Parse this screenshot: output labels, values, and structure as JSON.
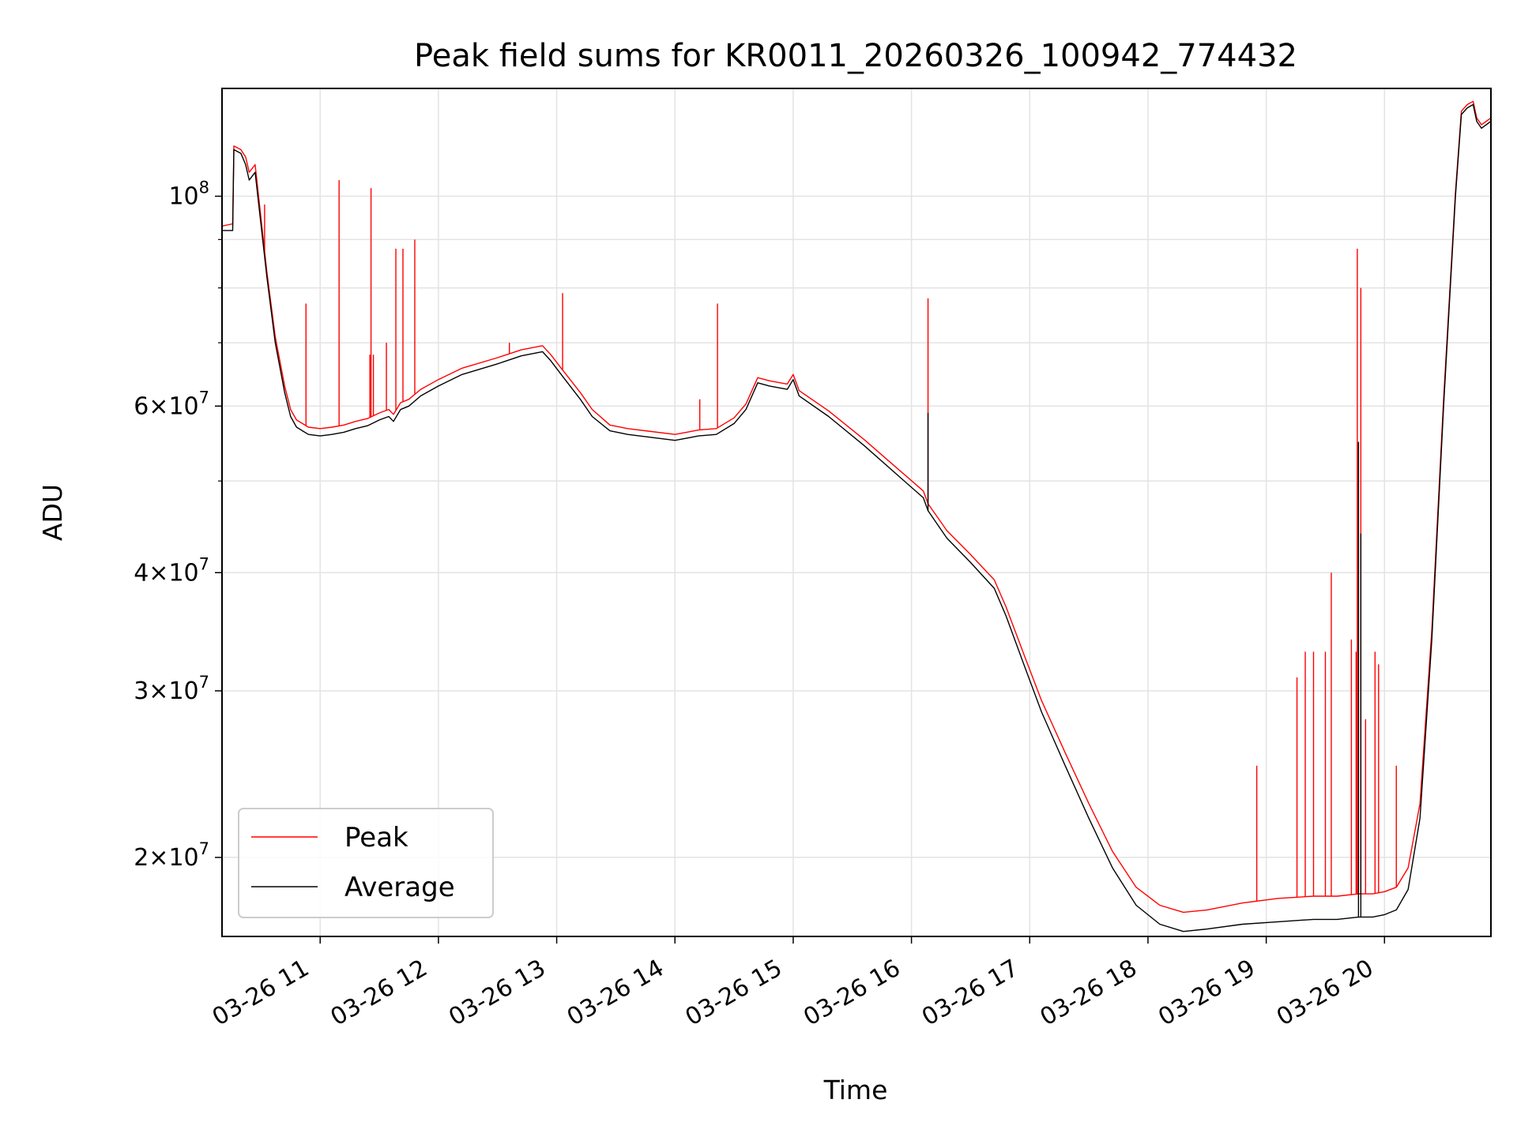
{
  "chart_data": {
    "type": "line",
    "title": "Peak field sums for KR0011_20260326_100942_774432",
    "xlabel": "Time",
    "ylabel": "ADU",
    "yscale": "log",
    "ylim": [
      16500000,
      130000000
    ],
    "xlim": [
      10.17,
      20.9
    ],
    "grid": true,
    "legend_location": "lower-left",
    "colors": {
      "Peak": "#ff0000",
      "Average": "#000000"
    },
    "x_ticks": [
      {
        "value": 11,
        "label": "03-26 11"
      },
      {
        "value": 12,
        "label": "03-26 12"
      },
      {
        "value": 13,
        "label": "03-26 13"
      },
      {
        "value": 14,
        "label": "03-26 14"
      },
      {
        "value": 15,
        "label": "03-26 15"
      },
      {
        "value": 16,
        "label": "03-26 16"
      },
      {
        "value": 17,
        "label": "03-26 17"
      },
      {
        "value": 18,
        "label": "03-26 18"
      },
      {
        "value": 19,
        "label": "03-26 19"
      },
      {
        "value": 20,
        "label": "03-26 20"
      }
    ],
    "y_ticks_major": [
      {
        "value": 20000000,
        "mantissa": "2",
        "base": "10",
        "exp": "7"
      },
      {
        "value": 30000000,
        "mantissa": "3",
        "base": "10",
        "exp": "7"
      },
      {
        "value": 40000000,
        "mantissa": "4",
        "base": "10",
        "exp": "7"
      },
      {
        "value": 60000000,
        "mantissa": "6",
        "base": "10",
        "exp": "7"
      },
      {
        "value": 100000000,
        "mantissa": "",
        "base": "10",
        "exp": "8"
      }
    ],
    "y_ticks_minor": [
      50000000,
      70000000,
      80000000,
      90000000
    ],
    "series": [
      {
        "name": "Average",
        "x": [
          10.17,
          10.26,
          10.27,
          10.33,
          10.37,
          10.4,
          10.45,
          10.55,
          10.62,
          10.7,
          10.75,
          10.8,
          10.85,
          10.9,
          11.0,
          11.1,
          11.2,
          11.3,
          11.4,
          11.5,
          11.58,
          11.62,
          11.68,
          11.75,
          11.85,
          12.0,
          12.2,
          12.5,
          12.7,
          12.88,
          12.95,
          13.05,
          13.2,
          13.3,
          13.45,
          13.6,
          13.8,
          14.0,
          14.1,
          14.2,
          14.35,
          14.5,
          14.6,
          14.7,
          14.8,
          14.95,
          15.0,
          15.05,
          15.3,
          15.6,
          15.9,
          16.1,
          16.14,
          16.3,
          16.5,
          16.7,
          16.8,
          16.95,
          17.1,
          17.3,
          17.5,
          17.7,
          17.9,
          18.1,
          18.3,
          18.5,
          18.8,
          19.1,
          19.4,
          19.6,
          19.78,
          19.9,
          20.0,
          20.1,
          20.2,
          20.3,
          20.4,
          20.5,
          20.6,
          20.65,
          20.7,
          20.75,
          20.78,
          20.82,
          20.9
        ],
        "y": [
          92000000,
          92000000,
          112000000,
          111000000,
          108000000,
          104000000,
          106000000,
          82000000,
          70000000,
          62000000,
          58500000,
          57000000,
          56500000,
          56000000,
          55800000,
          56000000,
          56300000,
          56800000,
          57200000,
          58000000,
          58500000,
          57800000,
          59500000,
          60000000,
          61500000,
          63000000,
          64800000,
          66500000,
          67800000,
          68500000,
          67000000,
          64500000,
          61000000,
          58500000,
          56500000,
          56000000,
          55600000,
          55200000,
          55500000,
          55800000,
          56000000,
          57500000,
          59500000,
          63500000,
          63000000,
          62500000,
          64000000,
          61500000,
          58500000,
          54500000,
          50500000,
          48000000,
          46500000,
          43500000,
          41000000,
          38500000,
          36000000,
          32000000,
          28500000,
          25000000,
          22000000,
          19500000,
          17800000,
          17000000,
          16700000,
          16800000,
          17000000,
          17100000,
          17200000,
          17200000,
          17300000,
          17300000,
          17400000,
          17600000,
          18500000,
          22000000,
          34000000,
          60000000,
          100000000,
          122000000,
          124000000,
          125000000,
          120000000,
          118000000,
          120000000
        ]
      },
      {
        "name": "Peak",
        "x": [
          10.17,
          10.26,
          10.27,
          10.33,
          10.37,
          10.4,
          10.45,
          10.55,
          10.62,
          10.7,
          10.75,
          10.8,
          10.85,
          10.9,
          11.0,
          11.1,
          11.2,
          11.3,
          11.4,
          11.5,
          11.58,
          11.62,
          11.68,
          11.75,
          11.85,
          12.0,
          12.2,
          12.5,
          12.7,
          12.88,
          12.95,
          13.05,
          13.2,
          13.3,
          13.45,
          13.6,
          13.8,
          14.0,
          14.1,
          14.2,
          14.35,
          14.5,
          14.6,
          14.7,
          14.8,
          14.95,
          15.0,
          15.05,
          15.3,
          15.6,
          15.9,
          16.1,
          16.14,
          16.3,
          16.5,
          16.7,
          16.8,
          16.95,
          17.1,
          17.3,
          17.5,
          17.7,
          17.9,
          18.1,
          18.3,
          18.5,
          18.8,
          19.1,
          19.4,
          19.6,
          19.78,
          19.9,
          20.0,
          20.1,
          20.2,
          20.3,
          20.4,
          20.5,
          20.6,
          20.65,
          20.7,
          20.75,
          20.78,
          20.82,
          20.9
        ],
        "y": [
          93000000,
          93500000,
          113000000,
          112000000,
          110000000,
          106000000,
          108000000,
          83000000,
          71000000,
          63000000,
          59500000,
          58000000,
          57500000,
          57000000,
          56800000,
          57000000,
          57300000,
          57800000,
          58200000,
          59000000,
          59500000,
          58800000,
          60500000,
          61000000,
          62500000,
          64000000,
          65800000,
          67500000,
          68800000,
          69500000,
          68000000,
          65500000,
          62000000,
          59500000,
          57300000,
          56800000,
          56400000,
          56000000,
          56300000,
          56600000,
          56800000,
          58300000,
          60300000,
          64300000,
          63800000,
          63300000,
          64800000,
          62300000,
          59300000,
          55300000,
          51300000,
          48800000,
          47300000,
          44300000,
          41800000,
          39300000,
          36800000,
          32800000,
          29300000,
          25800000,
          22800000,
          20300000,
          18600000,
          17800000,
          17500000,
          17600000,
          17900000,
          18100000,
          18200000,
          18200000,
          18300000,
          18300000,
          18400000,
          18600000,
          19500000,
          22800000,
          34800000,
          61000000,
          101000000,
          123000000,
          125000000,
          126000000,
          121000000,
          119000000,
          121000000
        ]
      }
    ],
    "peak_spikes": [
      {
        "x": 10.53,
        "y": 98000000
      },
      {
        "x": 10.88,
        "y": 77000000
      },
      {
        "x": 11.16,
        "y": 104000000
      },
      {
        "x": 11.42,
        "y": 68000000
      },
      {
        "x": 11.45,
        "y": 68000000
      },
      {
        "x": 11.43,
        "y": 102000000
      },
      {
        "x": 11.56,
        "y": 70000000
      },
      {
        "x": 11.64,
        "y": 88000000
      },
      {
        "x": 11.7,
        "y": 88000000
      },
      {
        "x": 11.8,
        "y": 90000000
      },
      {
        "x": 12.6,
        "y": 70000000
      },
      {
        "x": 13.05,
        "y": 79000000
      },
      {
        "x": 14.21,
        "y": 61000000
      },
      {
        "x": 14.36,
        "y": 77000000
      },
      {
        "x": 16.14,
        "y": 78000000
      },
      {
        "x": 18.92,
        "y": 25000000
      },
      {
        "x": 19.26,
        "y": 31000000
      },
      {
        "x": 19.33,
        "y": 33000000
      },
      {
        "x": 19.4,
        "y": 33000000
      },
      {
        "x": 19.5,
        "y": 33000000
      },
      {
        "x": 19.55,
        "y": 40000000
      },
      {
        "x": 19.72,
        "y": 34000000
      },
      {
        "x": 19.76,
        "y": 33000000
      },
      {
        "x": 19.77,
        "y": 88000000
      },
      {
        "x": 19.8,
        "y": 80000000
      },
      {
        "x": 19.84,
        "y": 28000000
      },
      {
        "x": 19.92,
        "y": 33000000
      },
      {
        "x": 19.95,
        "y": 32000000
      },
      {
        "x": 20.1,
        "y": 25000000
      }
    ],
    "average_spikes": [
      {
        "x": 16.14,
        "y": 59000000
      },
      {
        "x": 19.78,
        "y": 55000000
      },
      {
        "x": 19.8,
        "y": 44000000
      }
    ]
  }
}
